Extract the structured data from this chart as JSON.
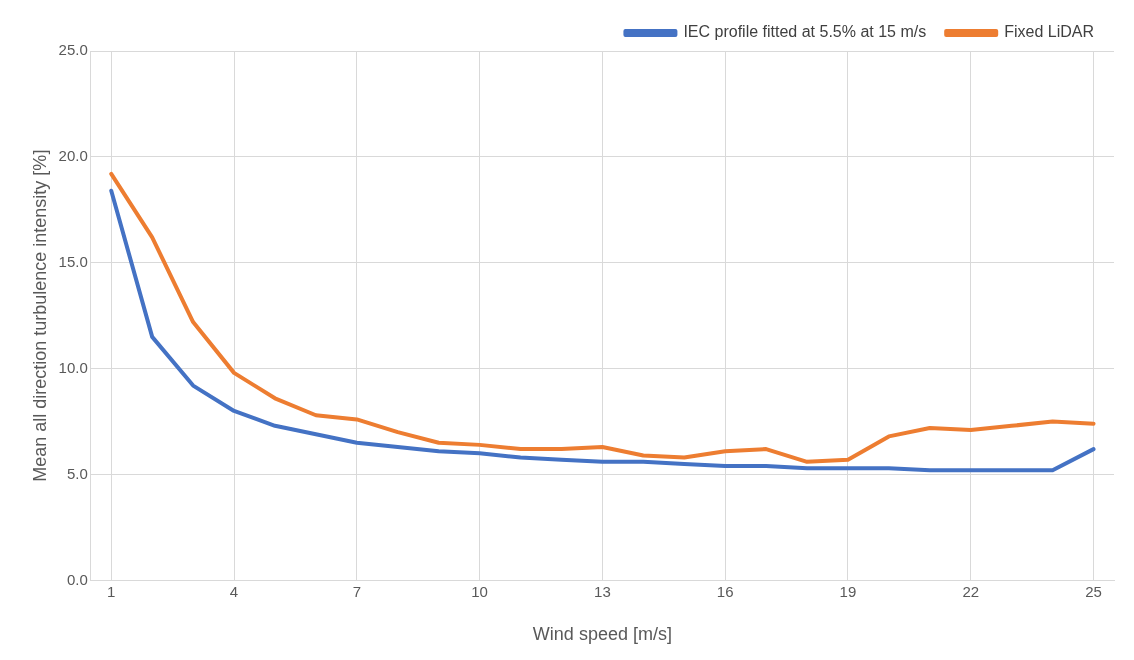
{
  "chart_data": {
    "type": "line",
    "xlabel": "Wind speed [m/s]",
    "ylabel": "Mean all direction turbulence intensity [%]",
    "x": [
      1,
      2,
      3,
      4,
      5,
      6,
      7,
      8,
      9,
      10,
      11,
      12,
      13,
      14,
      15,
      16,
      17,
      18,
      19,
      20,
      21,
      22,
      23,
      24,
      25
    ],
    "series": [
      {
        "name": "IEC profile fitted at 5.5% at 15 m/s",
        "color": "#4472c4",
        "values": [
          18.4,
          11.5,
          9.2,
          8.0,
          7.3,
          6.9,
          6.5,
          6.3,
          6.1,
          6.0,
          5.8,
          5.7,
          5.6,
          5.6,
          5.5,
          5.4,
          5.4,
          5.3,
          5.3,
          5.3,
          5.2,
          5.2,
          5.2,
          5.2,
          6.2
        ]
      },
      {
        "name": "Fixed LiDAR",
        "color": "#ed7d31",
        "values": [
          19.2,
          16.2,
          12.2,
          9.8,
          8.6,
          7.8,
          7.6,
          7.0,
          6.5,
          6.4,
          6.2,
          6.2,
          6.3,
          5.9,
          5.8,
          6.1,
          6.2,
          5.6,
          5.7,
          6.8,
          7.2,
          7.1,
          7.3,
          7.5,
          7.4
        ]
      }
    ],
    "xlim": [
      0.5,
      25.5
    ],
    "xticks": [
      1,
      4,
      7,
      10,
      13,
      16,
      19,
      22,
      25
    ],
    "ylim": [
      0,
      25
    ],
    "yticks": [
      {
        "value": 0,
        "label": "0.0"
      },
      {
        "value": 5,
        "label": "5.0"
      },
      {
        "value": 10,
        "label": "10.0"
      },
      {
        "value": 15,
        "label": "15.0"
      },
      {
        "value": 20,
        "label": "20.0"
      },
      {
        "value": 25,
        "label": "25.0"
      }
    ],
    "grid": true,
    "legend": "top right",
    "marker": "none",
    "line_style": "solid"
  }
}
